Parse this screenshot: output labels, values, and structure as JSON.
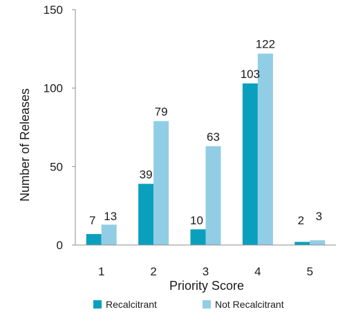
{
  "chart_data": {
    "type": "bar",
    "categories": [
      "1",
      "2",
      "3",
      "4",
      "5"
    ],
    "series": [
      {
        "name": "Recalcitrant",
        "values": [
          7,
          39,
          10,
          103,
          2
        ],
        "color": "#0aa0bd"
      },
      {
        "name": "Not Recalcitrant",
        "values": [
          13,
          79,
          63,
          122,
          3
        ],
        "color": "#92cde6"
      }
    ],
    "data_labels": [
      [
        "7",
        "39",
        "10",
        "103",
        "2"
      ],
      [
        "13",
        "79",
        "63",
        "122",
        "3"
      ]
    ],
    "xlabel": "Priority Score",
    "ylabel": "Number of Releases",
    "ylim": [
      0,
      150
    ],
    "yticks": [
      "0",
      "50",
      "100",
      "150"
    ],
    "grid": false,
    "legend_position": "bottom"
  }
}
